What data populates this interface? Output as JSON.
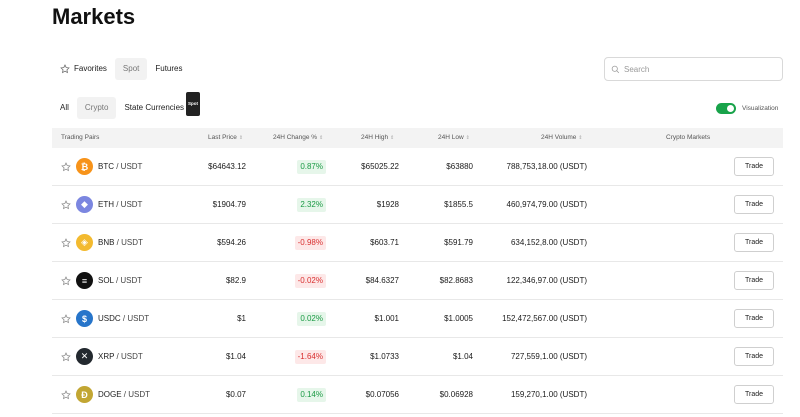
{
  "page": {
    "title": "Markets"
  },
  "market_tabs": [
    {
      "label": "Favorites"
    },
    {
      "label": "Spot"
    },
    {
      "label": "Futures"
    }
  ],
  "search": {
    "placeholder": "Search"
  },
  "category_tabs": [
    {
      "label": "All"
    },
    {
      "label": "Crypto"
    },
    {
      "label": "State Currencies",
      "badge": "Spot"
    }
  ],
  "visualization": {
    "label": "Visualization",
    "enabled": true,
    "color": "#18a34a"
  },
  "columns": {
    "pair": "Trading Pairs",
    "last_price": "Last Price",
    "change": "24H Change %",
    "high": "24H High",
    "low": "24H Low",
    "volume": "24H Volume",
    "crypto_markets": "Crypto Markets"
  },
  "rows": [
    {
      "base": "BTC",
      "quote": " / USDT",
      "icon": "bitcoin-icon",
      "icon_color": "#f7931a",
      "glyph": "₿",
      "last_price": "$64643.12",
      "change": "0.87%",
      "direction": "up",
      "high": "$65025.22",
      "low": "$63880",
      "volume": "788,753,18.00 (USDT)",
      "action": "Trade"
    },
    {
      "base": "ETH",
      "quote": " / USDT",
      "icon": "ethereum-icon",
      "icon_color": "#7b86e0",
      "glyph": "◆",
      "last_price": "$1904.79",
      "change": "2.32%",
      "direction": "up",
      "high": "$1928",
      "low": "$1855.5",
      "volume": "460,974,79.00 (USDT)",
      "action": "Trade"
    },
    {
      "base": "BNB",
      "quote": " / USDT",
      "icon": "binance-icon",
      "icon_color": "#f3ba2f",
      "glyph": "◈",
      "last_price": "$594.26",
      "change": "-0.98%",
      "direction": "down",
      "high": "$603.71",
      "low": "$591.79",
      "volume": "634,152,8.00 (USDT)",
      "action": "Trade"
    },
    {
      "base": "SOL",
      "quote": " / USDT",
      "icon": "solana-icon",
      "icon_color": "#111111",
      "glyph": "≡",
      "last_price": "$82.9",
      "change": "-0.02%",
      "direction": "down",
      "high": "$84.6327",
      "low": "$82.8683",
      "volume": "122,346,97.00 (USDT)",
      "action": "Trade"
    },
    {
      "base": "USDC",
      "quote": " / USDT",
      "icon": "usdc-icon",
      "icon_color": "#2775ca",
      "glyph": "$",
      "last_price": "$1",
      "change": "0.02%",
      "direction": "up",
      "high": "$1.001",
      "low": "$1.0005",
      "volume": "152,472,567.00 (USDT)",
      "action": "Trade"
    },
    {
      "base": "XRP",
      "quote": " / USDT",
      "icon": "xrp-icon",
      "icon_color": "#23292f",
      "glyph": "✕",
      "last_price": "$1.04",
      "change": "-1.64%",
      "direction": "down",
      "high": "$1.0733",
      "low": "$1.04",
      "volume": "727,559,1.00 (USDT)",
      "action": "Trade"
    },
    {
      "base": "DOGE",
      "quote": " / USDT",
      "icon": "dogecoin-icon",
      "icon_color": "#c2a633",
      "glyph": "Ð",
      "last_price": "$0.07",
      "change": "0.14%",
      "direction": "up",
      "high": "$0.07056",
      "low": "$0.06928",
      "volume": "159,270,1.00 (USDT)",
      "action": "Trade"
    }
  ]
}
